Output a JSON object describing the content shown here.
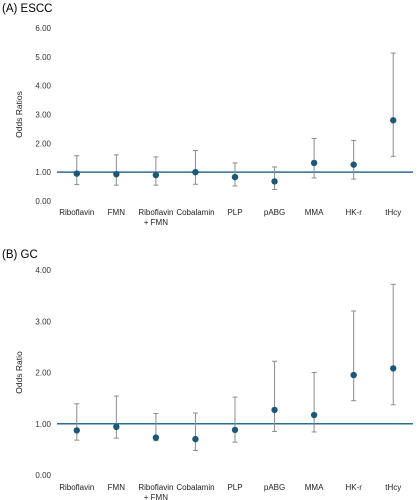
{
  "chart_data": [
    {
      "type": "scatter",
      "title": "(A) ESCC",
      "ylabel": "Odds Ratios",
      "xlabel": "",
      "ylim": [
        0,
        6
      ],
      "y_ticks": [
        "0.00",
        "1.00",
        "2.00",
        "3.00",
        "4.00",
        "5.00",
        "6.00"
      ],
      "reference_line": 1.0,
      "grid": false,
      "categories": [
        [
          "Riboflavin"
        ],
        [
          "FMN"
        ],
        [
          "Riboflavin",
          "+ FMN"
        ],
        [
          "Cobalamin"
        ],
        [
          "PLP"
        ],
        [
          "pABG"
        ],
        [
          "MMA"
        ],
        [
          "HK-r"
        ],
        [
          "tHcy"
        ]
      ],
      "series": [
        {
          "values": [
            0.95,
            0.93,
            0.9,
            1.0,
            0.83,
            0.68,
            1.32,
            1.26,
            2.8
          ],
          "ci_lower": [
            0.57,
            0.55,
            0.55,
            0.58,
            0.52,
            0.4,
            0.8,
            0.76,
            1.55
          ],
          "ci_upper": [
            1.57,
            1.6,
            1.53,
            1.75,
            1.32,
            1.18,
            2.17,
            2.1,
            5.13
          ]
        }
      ],
      "colors": {
        "point": "#1b5776",
        "whisker": "#8c8c8c",
        "reference": "#2c6e8d"
      }
    },
    {
      "type": "scatter",
      "title": "(B) GC",
      "ylabel": "Odds Ratio",
      "xlabel": "",
      "ylim": [
        0,
        4
      ],
      "y_ticks": [
        "0.00",
        "1.00",
        "2.00",
        "3.00",
        "4.00"
      ],
      "reference_line": 1.0,
      "grid": false,
      "categories": [
        [
          "Riboflavin"
        ],
        [
          "FMN"
        ],
        [
          "Riboflavin",
          "+ FMN"
        ],
        [
          "Cobalamin"
        ],
        [
          "PLP"
        ],
        [
          "pABG"
        ],
        [
          "MMA"
        ],
        [
          "HK-r"
        ],
        [
          "tHcy"
        ]
      ],
      "series": [
        {
          "values": [
            0.87,
            0.94,
            0.73,
            0.7,
            0.88,
            1.27,
            1.17,
            1.95,
            2.08
          ],
          "ci_lower": [
            0.68,
            0.72,
            0.67,
            0.48,
            0.64,
            0.85,
            0.84,
            1.45,
            1.37
          ],
          "ci_upper": [
            1.39,
            1.54,
            1.2,
            1.21,
            1.52,
            2.22,
            2.0,
            3.2,
            3.72
          ]
        }
      ],
      "colors": {
        "point": "#1b5776",
        "whisker": "#8c8c8c",
        "reference": "#2c6e8d"
      }
    }
  ]
}
